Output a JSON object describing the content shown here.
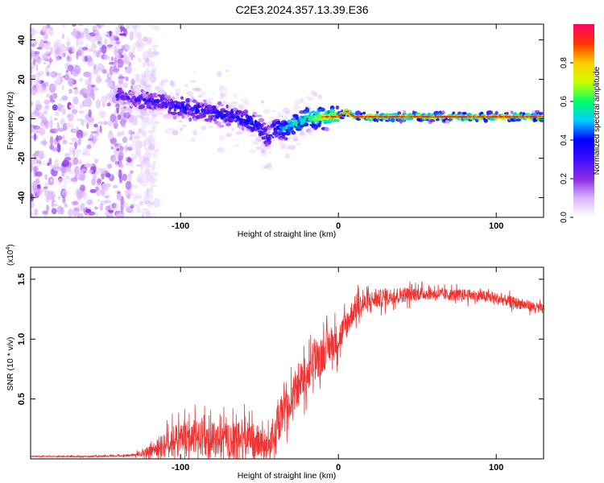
{
  "figure_title": "C2E3.2024.357.13.39.E36",
  "chart_data": [
    {
      "type": "heatmap",
      "xlabel": "Height of straight line (km)",
      "ylabel": "Frequency (Hz)",
      "xlim": [
        -195,
        130
      ],
      "ylim": [
        -50,
        48
      ],
      "x_ticks": [
        -100,
        0,
        100
      ],
      "y_ticks": [
        -40,
        -20,
        0,
        20,
        40
      ],
      "colorbar": {
        "label": "Normalized spectral amplitude",
        "range": [
          0,
          1
        ],
        "ticks": [
          0.0,
          0.2,
          0.4,
          0.6,
          0.8
        ],
        "tick_labels": [
          "0.0",
          "0.2",
          "0.4",
          "0.6",
          "0.8"
        ],
        "colormap": [
          "#ffffff",
          "#d9b3ff",
          "#8a2be2",
          "#3b0fff",
          "#0000ff",
          "#00ccff",
          "#00ff66",
          "#ccff00",
          "#ffcc00",
          "#ff3300",
          "#ff0066"
        ]
      },
      "ridge": {
        "x": [
          -140,
          -130,
          -120,
          -110,
          -100,
          -90,
          -80,
          -70,
          -60,
          -50,
          -45,
          -40,
          -35,
          -30,
          -25,
          -20,
          -15,
          -10,
          0,
          5,
          10,
          20,
          40,
          60,
          80,
          100,
          120,
          130
        ],
        "frequency": [
          12,
          10,
          9,
          8,
          6,
          5,
          3,
          2,
          0,
          -4,
          -10,
          -4,
          -6,
          -3,
          -2,
          1,
          0,
          1,
          1,
          4,
          1,
          1,
          1,
          1,
          1,
          1,
          1,
          1
        ],
        "amplitude": [
          0.35,
          0.35,
          0.4,
          0.4,
          0.45,
          0.45,
          0.45,
          0.45,
          0.5,
          0.5,
          0.4,
          0.5,
          0.6,
          0.65,
          0.65,
          0.7,
          0.75,
          0.8,
          0.85,
          0.8,
          0.85,
          0.85,
          0.85,
          0.85,
          0.85,
          0.85,
          0.85,
          0.85
        ]
      },
      "noise_region_x": [
        -195,
        -130
      ]
    },
    {
      "type": "line",
      "xlabel": "Height of straight line (km)",
      "ylabel": "SNR (10 * v/v)",
      "scale_label": "(x10",
      "scale_exponent": "4",
      "xlim": [
        -195,
        130
      ],
      "ylim": [
        0,
        1.6
      ],
      "x_ticks": [
        -100,
        0,
        100
      ],
      "y_ticks": [
        0.5,
        1.0,
        1.5
      ],
      "y_tick_labels": [
        "0.5",
        "1.0",
        "1.5"
      ],
      "color": "#ee3333",
      "envelope": {
        "x": [
          -195,
          -150,
          -130,
          -120,
          -110,
          -100,
          -90,
          -80,
          -70,
          -60,
          -50,
          -45,
          -40,
          -35,
          -30,
          -25,
          -20,
          -15,
          -10,
          -5,
          0,
          5,
          10,
          20,
          30,
          40,
          50,
          60,
          70,
          80,
          90,
          100,
          110,
          120,
          130
        ],
        "snr": [
          0.02,
          0.02,
          0.03,
          0.06,
          0.12,
          0.16,
          0.18,
          0.16,
          0.14,
          0.16,
          0.14,
          0.12,
          0.2,
          0.38,
          0.5,
          0.62,
          0.72,
          0.8,
          0.88,
          0.95,
          1.0,
          1.12,
          1.25,
          1.32,
          1.35,
          1.37,
          1.38,
          1.38,
          1.37,
          1.37,
          1.36,
          1.34,
          1.31,
          1.28,
          1.25
        ]
      },
      "noise_amplitude": {
        "x": [
          -195,
          -130,
          -120,
          -110,
          -100,
          -80,
          -60,
          -45,
          -35,
          -25,
          -15,
          -5,
          5,
          20,
          60,
          100,
          130
        ],
        "amp": [
          0.005,
          0.01,
          0.05,
          0.14,
          0.18,
          0.18,
          0.2,
          0.15,
          0.18,
          0.22,
          0.22,
          0.18,
          0.15,
          0.1,
          0.06,
          0.06,
          0.05
        ]
      }
    }
  ]
}
